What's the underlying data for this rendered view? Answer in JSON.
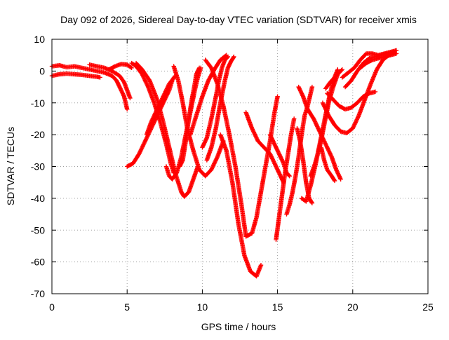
{
  "chart_data": {
    "type": "scatter",
    "title": "Day 092 of 2026, Sidereal Day-to-day VTEC variation (SDTVAR) for receiver xmis",
    "xlabel": "GPS time / hours",
    "ylabel": "SDTVAR / TECUs",
    "xlim": [
      0,
      25
    ],
    "ylim": [
      -70,
      10
    ],
    "x_ticks": [
      "0",
      "5",
      "10",
      "15",
      "20",
      "25"
    ],
    "y_ticks": [
      "10",
      "0",
      "-10",
      "-20",
      "-30",
      "-40",
      "-50",
      "-60",
      "-70"
    ],
    "grid": true,
    "marker": "+",
    "color": "#ff0000",
    "series": [
      {
        "points": [
          [
            0.0,
            1.5
          ],
          [
            0.5,
            1.8
          ],
          [
            1.0,
            1.2
          ],
          [
            1.5,
            1.5
          ],
          [
            2.0,
            1.0
          ],
          [
            2.5,
            0.5
          ],
          [
            3.0,
            0.0
          ],
          [
            3.5,
            -0.5
          ],
          [
            4.0,
            -1.5
          ],
          [
            4.3,
            -3.0
          ],
          [
            4.5,
            -5.0
          ],
          [
            4.8,
            -8.0
          ],
          [
            5.0,
            -12.0
          ]
        ]
      },
      {
        "points": [
          [
            0.0,
            -1.5
          ],
          [
            0.5,
            -1.0
          ],
          [
            1.0,
            -0.8
          ],
          [
            1.5,
            -1.0
          ],
          [
            2.0,
            -1.2
          ],
          [
            2.5,
            -1.5
          ],
          [
            3.0,
            -1.8
          ],
          [
            3.2,
            -2.0
          ]
        ]
      },
      {
        "points": [
          [
            2.5,
            2.0
          ],
          [
            3.0,
            1.5
          ],
          [
            3.5,
            1.0
          ],
          [
            4.0,
            0.0
          ],
          [
            4.5,
            -1.5
          ],
          [
            4.8,
            -3.5
          ],
          [
            5.0,
            -6.0
          ],
          [
            5.2,
            -8.5
          ]
        ]
      },
      {
        "points": [
          [
            3.8,
            0.5
          ],
          [
            4.2,
            1.5
          ],
          [
            4.6,
            2.2
          ],
          [
            5.0,
            2.0
          ],
          [
            5.3,
            1.0
          ]
        ]
      },
      {
        "points": [
          [
            5.0,
            -30.0
          ],
          [
            5.4,
            -29.0
          ],
          [
            5.8,
            -26.0
          ],
          [
            6.2,
            -22.0
          ],
          [
            6.6,
            -18.0
          ],
          [
            7.0,
            -14.0
          ],
          [
            7.4,
            -10.0
          ],
          [
            7.8,
            -6.0
          ],
          [
            8.0,
            -3.0
          ]
        ]
      },
      {
        "points": [
          [
            5.3,
            2.5
          ],
          [
            5.6,
            1.5
          ],
          [
            6.0,
            -1.0
          ],
          [
            6.4,
            -5.0
          ],
          [
            6.8,
            -10.0
          ],
          [
            7.2,
            -16.0
          ],
          [
            7.6,
            -23.0
          ],
          [
            7.9,
            -29.0
          ],
          [
            8.1,
            -32.0
          ]
        ]
      },
      {
        "points": [
          [
            5.6,
            2.5
          ],
          [
            6.0,
            0.5
          ],
          [
            6.5,
            -3.0
          ],
          [
            7.0,
            -9.0
          ],
          [
            7.4,
            -16.0
          ],
          [
            7.8,
            -24.0
          ],
          [
            8.2,
            -32.0
          ],
          [
            8.6,
            -38.0
          ],
          [
            8.8,
            -39.5
          ],
          [
            9.1,
            -38.0
          ],
          [
            9.4,
            -34.0
          ],
          [
            9.7,
            -30.0
          ]
        ]
      },
      {
        "points": [
          [
            6.3,
            -20.0
          ],
          [
            6.6,
            -16.0
          ],
          [
            7.0,
            -12.0
          ],
          [
            7.4,
            -8.0
          ],
          [
            7.8,
            -4.0
          ],
          [
            8.2,
            -1.5
          ]
        ]
      },
      {
        "points": [
          [
            7.6,
            -30.0
          ],
          [
            7.8,
            -33.0
          ],
          [
            8.0,
            -34.0
          ],
          [
            8.3,
            -32.0
          ],
          [
            8.6,
            -27.0
          ],
          [
            8.9,
            -20.0
          ],
          [
            9.2,
            -13.0
          ],
          [
            9.5,
            -6.0
          ],
          [
            9.7,
            -2.0
          ],
          [
            9.9,
            1.0
          ]
        ]
      },
      {
        "points": [
          [
            8.5,
            -30.0
          ],
          [
            8.7,
            -28.0
          ],
          [
            8.9,
            -22.0
          ],
          [
            9.1,
            -15.0
          ],
          [
            9.3,
            -9.0
          ],
          [
            9.5,
            -4.0
          ],
          [
            9.6,
            -1.0
          ],
          [
            9.8,
            1.0
          ]
        ]
      },
      {
        "points": [
          [
            8.1,
            1.5
          ],
          [
            8.4,
            -3.0
          ],
          [
            8.7,
            -10.0
          ],
          [
            9.0,
            -18.0
          ],
          [
            9.4,
            -25.0
          ],
          [
            9.8,
            -31.0
          ],
          [
            10.2,
            -33.0
          ],
          [
            10.6,
            -31.0
          ],
          [
            11.0,
            -27.0
          ],
          [
            11.4,
            -22.0
          ]
        ]
      },
      {
        "points": [
          [
            9.2,
            -20.0
          ],
          [
            9.6,
            -14.0
          ],
          [
            10.0,
            -8.0
          ],
          [
            10.4,
            -3.0
          ],
          [
            10.8,
            0.5
          ],
          [
            11.2,
            3.5
          ],
          [
            11.6,
            5.0
          ]
        ]
      },
      {
        "points": [
          [
            10.0,
            -24.0
          ],
          [
            10.3,
            -21.0
          ],
          [
            10.6,
            -15.0
          ],
          [
            10.9,
            -8.0
          ],
          [
            11.1,
            -3.0
          ],
          [
            11.3,
            1.0
          ],
          [
            11.5,
            3.5
          ],
          [
            11.7,
            4.5
          ]
        ]
      },
      {
        "points": [
          [
            10.3,
            -28.0
          ],
          [
            10.6,
            -24.0
          ],
          [
            10.9,
            -18.0
          ],
          [
            11.2,
            -10.0
          ],
          [
            11.5,
            -3.0
          ],
          [
            11.7,
            1.0
          ],
          [
            11.9,
            3.0
          ],
          [
            12.1,
            4.5
          ]
        ]
      },
      {
        "points": [
          [
            10.2,
            3.5
          ],
          [
            10.6,
            1.0
          ],
          [
            11.0,
            -4.0
          ],
          [
            11.4,
            -11.0
          ],
          [
            11.8,
            -20.0
          ],
          [
            12.2,
            -30.0
          ],
          [
            12.6,
            -42.0
          ],
          [
            12.9,
            -52.0
          ],
          [
            13.3,
            -51.0
          ],
          [
            13.6,
            -46.0
          ],
          [
            13.9,
            -38.0
          ],
          [
            14.2,
            -30.0
          ],
          [
            14.5,
            -22.0
          ],
          [
            14.8,
            -13.0
          ],
          [
            15.0,
            -8.0
          ]
        ]
      },
      {
        "points": [
          [
            11.2,
            -20.0
          ],
          [
            11.6,
            -25.0
          ],
          [
            12.0,
            -35.0
          ],
          [
            12.4,
            -48.0
          ],
          [
            12.8,
            -58.0
          ],
          [
            13.2,
            -63.0
          ],
          [
            13.6,
            -64.5
          ],
          [
            13.9,
            -61.0
          ]
        ]
      },
      {
        "points": [
          [
            12.9,
            -13.0
          ],
          [
            13.3,
            -18.0
          ],
          [
            13.7,
            -22.0
          ],
          [
            14.1,
            -24.0
          ],
          [
            14.5,
            -26.0
          ],
          [
            14.9,
            -30.0
          ],
          [
            15.2,
            -33.0
          ],
          [
            15.4,
            -35.0
          ]
        ]
      },
      {
        "points": [
          [
            14.5,
            -20.0
          ],
          [
            14.8,
            -23.0
          ],
          [
            15.1,
            -26.0
          ],
          [
            15.4,
            -29.0
          ],
          [
            15.6,
            -32.0
          ],
          [
            15.8,
            -33.0
          ]
        ]
      },
      {
        "points": [
          [
            14.9,
            -53.0
          ],
          [
            15.1,
            -46.0
          ],
          [
            15.3,
            -39.0
          ],
          [
            15.5,
            -32.0
          ],
          [
            15.7,
            -26.0
          ],
          [
            15.9,
            -20.0
          ],
          [
            16.1,
            -15.0
          ]
        ]
      },
      {
        "points": [
          [
            15.6,
            -45.0
          ],
          [
            15.8,
            -42.0
          ],
          [
            16.0,
            -38.0
          ],
          [
            16.2,
            -33.0
          ],
          [
            16.4,
            -27.0
          ],
          [
            16.6,
            -20.0
          ],
          [
            16.8,
            -14.0
          ],
          [
            17.0,
            -11.0
          ],
          [
            17.2,
            -7.0
          ],
          [
            17.3,
            -5.0
          ]
        ]
      },
      {
        "points": [
          [
            16.3,
            -18.0
          ],
          [
            16.5,
            -22.0
          ],
          [
            16.7,
            -28.0
          ],
          [
            16.9,
            -35.0
          ],
          [
            17.1,
            -40.0
          ],
          [
            17.3,
            -41.5
          ]
        ]
      },
      {
        "points": [
          [
            16.4,
            -5.0
          ],
          [
            16.7,
            -8.0
          ],
          [
            17.0,
            -12.0
          ],
          [
            17.4,
            -15.0
          ],
          [
            17.8,
            -19.0
          ],
          [
            18.2,
            -23.0
          ],
          [
            18.6,
            -27.0
          ],
          [
            18.9,
            -31.0
          ],
          [
            19.2,
            -34.0
          ]
        ]
      },
      {
        "points": [
          [
            16.6,
            -40.0
          ],
          [
            16.9,
            -41.0
          ],
          [
            17.2,
            -36.0
          ],
          [
            17.5,
            -30.0
          ],
          [
            17.8,
            -23.0
          ],
          [
            18.1,
            -16.0
          ],
          [
            18.4,
            -9.0
          ],
          [
            18.7,
            -3.0
          ],
          [
            19.0,
            0.5
          ]
        ]
      },
      {
        "points": [
          [
            17.2,
            -33.0
          ],
          [
            17.5,
            -29.0
          ],
          [
            17.8,
            -24.0
          ],
          [
            18.1,
            -17.0
          ],
          [
            18.4,
            -10.0
          ],
          [
            18.7,
            -5.0
          ],
          [
            19.0,
            -1.0
          ],
          [
            19.3,
            0.5
          ]
        ]
      },
      {
        "points": [
          [
            17.9,
            -24.0
          ],
          [
            18.1,
            -28.0
          ],
          [
            18.3,
            -31.0
          ],
          [
            18.6,
            -33.0
          ],
          [
            18.8,
            -34.5
          ]
        ]
      },
      {
        "points": [
          [
            18.0,
            -10.0
          ],
          [
            18.4,
            -14.0
          ],
          [
            18.8,
            -17.0
          ],
          [
            19.2,
            -19.0
          ],
          [
            19.6,
            -19.5
          ],
          [
            20.0,
            -18.0
          ],
          [
            20.4,
            -14.0
          ],
          [
            20.8,
            -9.0
          ],
          [
            21.2,
            -4.0
          ],
          [
            21.6,
            0.5
          ],
          [
            22.0,
            3.5
          ],
          [
            22.4,
            5.0
          ],
          [
            22.8,
            6.0
          ]
        ]
      },
      {
        "points": [
          [
            18.3,
            -7.0
          ],
          [
            18.7,
            -9.0
          ],
          [
            19.1,
            -11.0
          ],
          [
            19.5,
            -12.0
          ],
          [
            19.9,
            -11.5
          ],
          [
            20.3,
            -10.0
          ],
          [
            20.7,
            -8.0
          ],
          [
            21.1,
            -7.0
          ],
          [
            21.5,
            -6.5
          ]
        ]
      },
      {
        "points": [
          [
            19.3,
            -2.0
          ],
          [
            19.7,
            -0.5
          ],
          [
            20.1,
            1.0
          ],
          [
            20.5,
            3.5
          ],
          [
            20.9,
            5.5
          ],
          [
            21.3,
            5.5
          ],
          [
            21.7,
            5.0
          ],
          [
            22.1,
            5.5
          ],
          [
            22.5,
            6.0
          ],
          [
            22.9,
            6.5
          ]
        ]
      },
      {
        "points": [
          [
            19.5,
            -5.0
          ],
          [
            19.9,
            -3.0
          ],
          [
            20.3,
            0.0
          ],
          [
            20.7,
            2.5
          ],
          [
            21.1,
            4.0
          ],
          [
            21.5,
            4.5
          ],
          [
            21.9,
            5.0
          ],
          [
            22.3,
            5.5
          ],
          [
            22.7,
            6.0
          ]
        ]
      },
      {
        "points": [
          [
            20.5,
            1.0
          ],
          [
            20.9,
            2.5
          ],
          [
            21.3,
            3.5
          ],
          [
            21.7,
            4.0
          ],
          [
            22.1,
            4.5
          ],
          [
            22.5,
            5.0
          ],
          [
            22.9,
            5.5
          ]
        ]
      },
      {
        "points": [
          [
            18.2,
            -5.5
          ],
          [
            18.5,
            -3.5
          ],
          [
            18.9,
            -1.5
          ]
        ]
      }
    ]
  }
}
